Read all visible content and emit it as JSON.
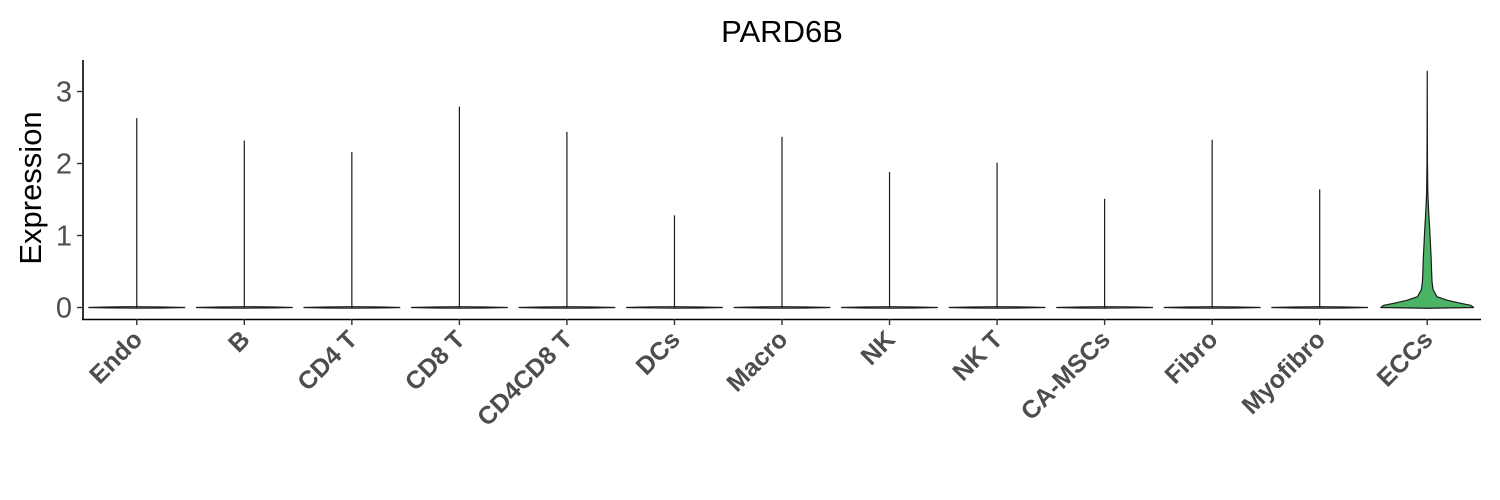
{
  "chart_data": {
    "type": "violin",
    "title": "PARD6B",
    "xlabel": "",
    "ylabel": "Expression",
    "ylim": [
      -0.18,
      3.45
    ],
    "yticks": [
      0,
      1,
      2,
      3
    ],
    "grid": false,
    "legend": "none",
    "categories": [
      "Endo",
      "B",
      "CD4 T",
      "CD8 T",
      "CD4CD8 T",
      "DCs",
      "Macro",
      "NK",
      "NK T",
      "CA-MSCs",
      "Fibro",
      "Myofibro",
      "ECCs"
    ],
    "max_values": [
      2.63,
      2.32,
      2.16,
      2.79,
      2.44,
      1.28,
      2.37,
      1.88,
      2.01,
      1.51,
      2.33,
      1.64,
      3.28
    ],
    "highlight": {
      "category": "ECCs",
      "color": "#4bb364",
      "density_profile": [
        [
          0.0,
          0.96
        ],
        [
          0.03,
          0.9
        ],
        [
          0.06,
          0.68
        ],
        [
          0.1,
          0.42
        ],
        [
          0.15,
          0.2
        ],
        [
          0.25,
          0.12
        ],
        [
          0.35,
          0.1
        ],
        [
          0.5,
          0.09
        ],
        [
          0.7,
          0.08
        ],
        [
          0.9,
          0.065
        ],
        [
          1.1,
          0.05
        ],
        [
          1.3,
          0.032
        ],
        [
          1.6,
          0.012
        ],
        [
          2.0,
          0.005
        ],
        [
          2.5,
          0.002
        ],
        [
          3.28,
          0.0
        ]
      ]
    }
  }
}
